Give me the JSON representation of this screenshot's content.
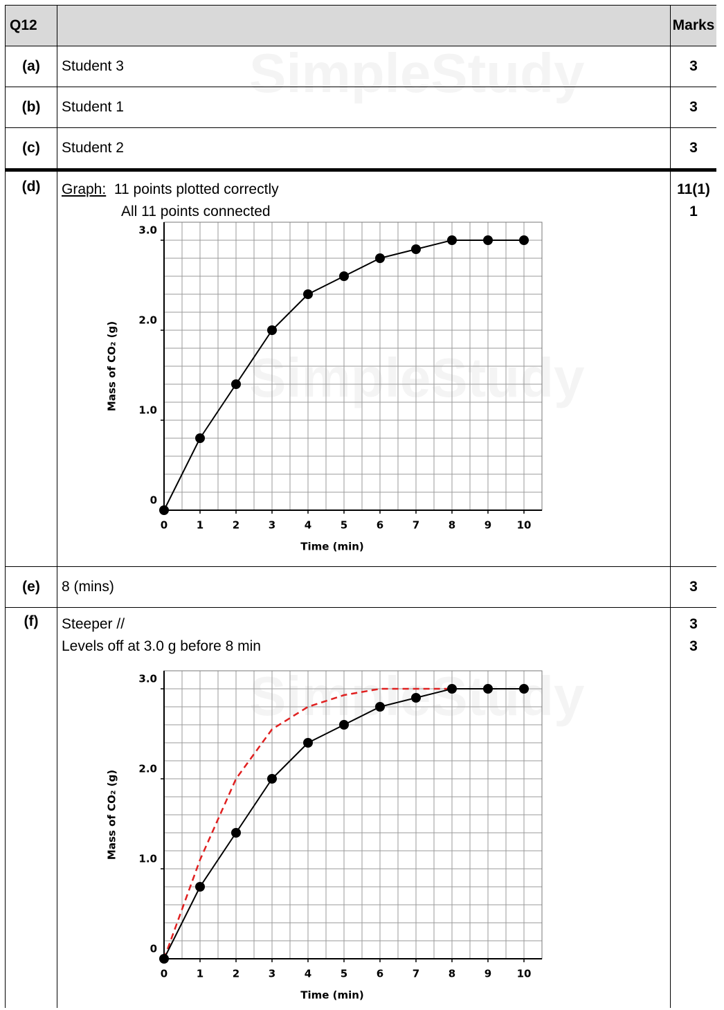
{
  "header": {
    "question": "Q12",
    "marks": "Marks"
  },
  "watermark": "SimpleStudy",
  "rows": [
    {
      "part": "(a)",
      "answer": "Student 3",
      "marks": 3
    },
    {
      "part": "(b)",
      "answer": "Student 1",
      "marks": 3
    },
    {
      "part": "(c)",
      "answer": "Student 2",
      "marks": 3
    },
    {
      "part": "(d)",
      "label": "Graph:",
      "lines": [
        "11 points plotted correctly",
        "All 11 points connected"
      ],
      "marks": [
        "11(1)",
        1
      ],
      "chart_data": {
        "type": "line",
        "x": [
          0,
          1,
          2,
          3,
          4,
          5,
          6,
          7,
          8,
          9,
          10
        ],
        "series": [
          {
            "color": "#000000",
            "values": [
              0,
              0.8,
              1.4,
              2.0,
              2.4,
              2.6,
              2.8,
              2.9,
              3.0,
              3.0,
              3.0
            ]
          }
        ],
        "xlabel": "Time (min)",
        "ylabel": "Mass of CO₂ (g)",
        "xlim": [
          0,
          10.5
        ],
        "ylim": [
          0,
          3.2
        ],
        "xticks": [
          0,
          1,
          2,
          3,
          4,
          5,
          6,
          7,
          8,
          9,
          10
        ],
        "yticks": [
          0,
          {
            "value": 1,
            "label": "1.0"
          },
          {
            "value": 2,
            "label": "2.0"
          },
          {
            "value": 3,
            "label": "3.0"
          }
        ],
        "grid": true
      }
    },
    {
      "part": "(e)",
      "answer": "8 (mins)",
      "marks": 3
    },
    {
      "part": "(f)",
      "lines": [
        "Steeper //",
        "Levels off at 3.0 g before 8 min"
      ],
      "marks": [
        3,
        3
      ],
      "chart_data": {
        "type": "line",
        "x": [
          0,
          1,
          2,
          3,
          4,
          5,
          6,
          7,
          8,
          9,
          10
        ],
        "series": [
          {
            "color": "#000000",
            "values": [
              0,
              0.8,
              1.4,
              2.0,
              2.4,
              2.6,
              2.8,
              2.9,
              3.0,
              3.0,
              3.0
            ]
          },
          {
            "color": "#e02020",
            "dashed": true,
            "values": [
              0,
              1.1,
              2.0,
              2.55,
              2.8,
              2.93,
              3.0,
              3.0,
              3.0,
              null,
              null
            ]
          }
        ],
        "xlabel": "Time (min)",
        "ylabel": "Mass of CO₂ (g)",
        "xlim": [
          0,
          10.5
        ],
        "ylim": [
          0,
          3.2
        ],
        "xticks": [
          0,
          1,
          2,
          3,
          4,
          5,
          6,
          7,
          8,
          9,
          10
        ],
        "yticks": [
          0,
          {
            "value": 1,
            "label": "1.0"
          },
          {
            "value": 2,
            "label": "2.0"
          },
          {
            "value": 3,
            "label": "3.0"
          }
        ],
        "grid": true
      }
    }
  ]
}
